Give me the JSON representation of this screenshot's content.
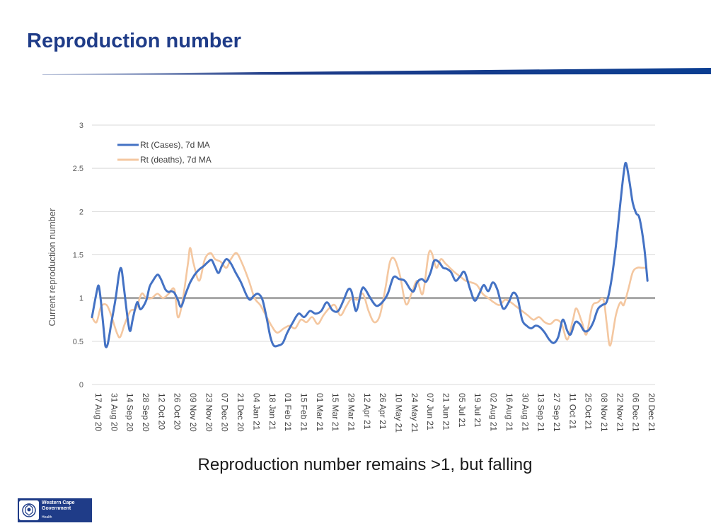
{
  "page": {
    "title": "Reproduction number",
    "caption": "Reproduction number remains >1, but falling",
    "logo": {
      "line1": "Western Cape",
      "line2": "Government",
      "dept": "Health"
    }
  },
  "colors": {
    "title": "#1f3c88",
    "cases": "#4472c4",
    "deaths": "#f4c7a0",
    "threshold": "#a6a6a6",
    "grid": "#d9d9d9"
  },
  "chart_data": {
    "type": "line",
    "ylabel": "Current reproduction number",
    "xlabel": "",
    "ylim": [
      0,
      3
    ],
    "y_ticks": [
      "0",
      "0.5",
      "1",
      "1.5",
      "2",
      "2.5",
      "3"
    ],
    "grid": "horizontal",
    "legend_position": "top-left",
    "x_tick_labels": [
      "17 Aug 20",
      "31 Aug 20",
      "14 Sep 20",
      "28 Sep 20",
      "12 Oct 20",
      "26 Oct 20",
      "09 Nov 20",
      "23 Nov 20",
      "07 Dec 20",
      "21 Dec 20",
      "04 Jan 21",
      "18 Jan 21",
      "01 Feb 21",
      "15 Feb 21",
      "01 Mar 21",
      "15 Mar 21",
      "29 Mar 21",
      "12 Apr 21",
      "26 Apr 21",
      "10 May 21",
      "24 May 21",
      "07 Jun 21",
      "21 Jun 21",
      "05 Jul 21",
      "19 Jul 21",
      "02 Aug 21",
      "16 Aug 21",
      "30 Aug 21",
      "13 Sep 21",
      "27 Sep 21",
      "11 Oct 21",
      "25 Oct 21",
      "08 Nov 21",
      "22 Nov 21",
      "06 Dec 21",
      "20 Dec 21"
    ],
    "x_range": [
      "2020-08-17",
      "2021-12-20"
    ],
    "reference_line": {
      "y": 1,
      "from": "2020-08-24",
      "to": "2021-12-29"
    },
    "series": [
      {
        "name": "Rt (Cases), 7d MA",
        "points": [
          [
            "2020-08-17",
            0.78
          ],
          [
            "2020-08-21",
            1.06
          ],
          [
            "2020-08-23",
            1.14
          ],
          [
            "2020-08-25",
            0.95
          ],
          [
            "2020-08-28",
            0.55
          ],
          [
            "2020-08-29",
            0.44
          ],
          [
            "2020-08-31",
            0.47
          ],
          [
            "2020-09-03",
            0.7
          ],
          [
            "2020-09-07",
            1.0
          ],
          [
            "2020-09-10",
            1.28
          ],
          [
            "2020-09-12",
            1.34
          ],
          [
            "2020-09-14",
            1.15
          ],
          [
            "2020-09-18",
            0.72
          ],
          [
            "2020-09-20",
            0.62
          ],
          [
            "2020-09-22",
            0.75
          ],
          [
            "2020-09-26",
            0.95
          ],
          [
            "2020-09-29",
            0.87
          ],
          [
            "2020-10-04",
            0.97
          ],
          [
            "2020-10-07",
            1.13
          ],
          [
            "2020-10-10",
            1.2
          ],
          [
            "2020-10-14",
            1.27
          ],
          [
            "2020-10-17",
            1.22
          ],
          [
            "2020-10-21",
            1.1
          ],
          [
            "2020-10-24",
            1.07
          ],
          [
            "2020-10-26",
            1.08
          ],
          [
            "2020-10-29",
            1.06
          ],
          [
            "2020-11-01",
            0.98
          ],
          [
            "2020-11-04",
            0.9
          ],
          [
            "2020-11-08",
            1.05
          ],
          [
            "2020-11-12",
            1.18
          ],
          [
            "2020-11-16",
            1.27
          ],
          [
            "2020-11-20",
            1.33
          ],
          [
            "2020-11-24",
            1.37
          ],
          [
            "2020-11-28",
            1.42
          ],
          [
            "2020-12-01",
            1.44
          ],
          [
            "2020-12-04",
            1.36
          ],
          [
            "2020-12-07",
            1.29
          ],
          [
            "2020-12-10",
            1.37
          ],
          [
            "2020-12-14",
            1.45
          ],
          [
            "2020-12-18",
            1.4
          ],
          [
            "2020-12-22",
            1.3
          ],
          [
            "2020-12-27",
            1.18
          ],
          [
            "2021-01-01",
            1.03
          ],
          [
            "2021-01-04",
            0.98
          ],
          [
            "2021-01-07",
            1.02
          ],
          [
            "2021-01-11",
            1.05
          ],
          [
            "2021-01-15",
            0.98
          ],
          [
            "2021-01-19",
            0.75
          ],
          [
            "2021-01-22",
            0.55
          ],
          [
            "2021-01-25",
            0.45
          ],
          [
            "2021-01-29",
            0.45
          ],
          [
            "2021-02-02",
            0.48
          ],
          [
            "2021-02-06",
            0.6
          ],
          [
            "2021-02-11",
            0.72
          ],
          [
            "2021-02-16",
            0.82
          ],
          [
            "2021-02-21",
            0.78
          ],
          [
            "2021-02-26",
            0.85
          ],
          [
            "2021-03-03",
            0.82
          ],
          [
            "2021-03-08",
            0.85
          ],
          [
            "2021-03-13",
            0.95
          ],
          [
            "2021-03-18",
            0.86
          ],
          [
            "2021-03-23",
            0.85
          ],
          [
            "2021-03-28",
            0.98
          ],
          [
            "2021-04-01",
            1.1
          ],
          [
            "2021-04-04",
            1.07
          ],
          [
            "2021-04-08",
            0.85
          ],
          [
            "2021-04-13",
            1.1
          ],
          [
            "2021-04-16",
            1.1
          ],
          [
            "2021-04-21",
            0.99
          ],
          [
            "2021-04-26",
            0.91
          ],
          [
            "2021-05-01",
            0.95
          ],
          [
            "2021-05-06",
            1.05
          ],
          [
            "2021-05-11",
            1.24
          ],
          [
            "2021-05-16",
            1.22
          ],
          [
            "2021-05-21",
            1.2
          ],
          [
            "2021-05-26",
            1.1
          ],
          [
            "2021-05-29",
            1.08
          ],
          [
            "2021-06-01",
            1.18
          ],
          [
            "2021-06-05",
            1.22
          ],
          [
            "2021-06-09",
            1.19
          ],
          [
            "2021-06-13",
            1.3
          ],
          [
            "2021-06-16",
            1.43
          ],
          [
            "2021-06-20",
            1.42
          ],
          [
            "2021-06-24",
            1.35
          ],
          [
            "2021-06-27",
            1.34
          ],
          [
            "2021-07-01",
            1.3
          ],
          [
            "2021-07-05",
            1.2
          ],
          [
            "2021-07-09",
            1.25
          ],
          [
            "2021-07-13",
            1.3
          ],
          [
            "2021-07-18",
            1.1
          ],
          [
            "2021-07-22",
            0.97
          ],
          [
            "2021-07-26",
            1.05
          ],
          [
            "2021-07-30",
            1.15
          ],
          [
            "2021-08-03",
            1.08
          ],
          [
            "2021-08-07",
            1.18
          ],
          [
            "2021-08-11",
            1.1
          ],
          [
            "2021-08-16",
            0.88
          ],
          [
            "2021-08-21",
            0.95
          ],
          [
            "2021-08-25",
            1.06
          ],
          [
            "2021-08-29",
            1.0
          ],
          [
            "2021-09-02",
            0.75
          ],
          [
            "2021-09-06",
            0.68
          ],
          [
            "2021-09-10",
            0.65
          ],
          [
            "2021-09-14",
            0.68
          ],
          [
            "2021-09-18",
            0.66
          ],
          [
            "2021-09-22",
            0.6
          ],
          [
            "2021-09-26",
            0.52
          ],
          [
            "2021-09-30",
            0.48
          ],
          [
            "2021-10-04",
            0.55
          ],
          [
            "2021-10-08",
            0.75
          ],
          [
            "2021-10-12",
            0.62
          ],
          [
            "2021-10-15",
            0.58
          ],
          [
            "2021-10-19",
            0.72
          ],
          [
            "2021-10-23",
            0.7
          ],
          [
            "2021-10-27",
            0.62
          ],
          [
            "2021-10-31",
            0.63
          ],
          [
            "2021-11-04",
            0.72
          ],
          [
            "2021-11-08",
            0.87
          ],
          [
            "2021-11-12",
            0.92
          ],
          [
            "2021-11-16",
            0.96
          ],
          [
            "2021-11-20",
            1.2
          ],
          [
            "2021-11-24",
            1.6
          ],
          [
            "2021-11-28",
            2.1
          ],
          [
            "2021-12-01",
            2.45
          ],
          [
            "2021-12-03",
            2.56
          ],
          [
            "2021-12-06",
            2.35
          ],
          [
            "2021-12-09",
            2.1
          ],
          [
            "2021-12-12",
            1.98
          ],
          [
            "2021-12-15",
            1.92
          ],
          [
            "2021-12-19",
            1.6
          ],
          [
            "2021-12-22",
            1.2
          ]
        ]
      },
      {
        "name": "Rt (deaths), 7d MA",
        "points": [
          [
            "2020-08-17",
            0.78
          ],
          [
            "2020-08-21",
            0.72
          ],
          [
            "2020-08-25",
            0.9
          ],
          [
            "2020-08-30",
            0.92
          ],
          [
            "2020-09-03",
            0.8
          ],
          [
            "2020-09-08",
            0.6
          ],
          [
            "2020-09-11",
            0.55
          ],
          [
            "2020-09-15",
            0.7
          ],
          [
            "2020-09-20",
            0.85
          ],
          [
            "2020-09-25",
            0.88
          ],
          [
            "2020-09-30",
            1.05
          ],
          [
            "2020-10-04",
            1.0
          ],
          [
            "2020-10-09",
            1.0
          ],
          [
            "2020-10-14",
            1.05
          ],
          [
            "2020-10-19",
            1.0
          ],
          [
            "2020-10-24",
            1.05
          ],
          [
            "2020-10-29",
            1.1
          ],
          [
            "2020-11-01",
            0.78
          ],
          [
            "2020-11-05",
            0.95
          ],
          [
            "2020-11-10",
            1.4
          ],
          [
            "2020-11-12",
            1.58
          ],
          [
            "2020-11-15",
            1.4
          ],
          [
            "2020-11-20",
            1.2
          ],
          [
            "2020-11-25",
            1.45
          ],
          [
            "2020-11-30",
            1.52
          ],
          [
            "2020-12-04",
            1.45
          ],
          [
            "2020-12-09",
            1.42
          ],
          [
            "2020-12-14",
            1.35
          ],
          [
            "2020-12-18",
            1.45
          ],
          [
            "2020-12-23",
            1.52
          ],
          [
            "2020-12-28",
            1.4
          ],
          [
            "2021-01-03",
            1.2
          ],
          [
            "2021-01-08",
            1.0
          ],
          [
            "2021-01-13",
            0.92
          ],
          [
            "2021-01-18",
            0.8
          ],
          [
            "2021-01-23",
            0.68
          ],
          [
            "2021-01-28",
            0.6
          ],
          [
            "2021-02-03",
            0.65
          ],
          [
            "2021-02-08",
            0.68
          ],
          [
            "2021-02-13",
            0.65
          ],
          [
            "2021-02-18",
            0.75
          ],
          [
            "2021-02-23",
            0.72
          ],
          [
            "2021-02-28",
            0.78
          ],
          [
            "2021-03-05",
            0.7
          ],
          [
            "2021-03-10",
            0.8
          ],
          [
            "2021-03-15",
            0.88
          ],
          [
            "2021-03-20",
            0.92
          ],
          [
            "2021-03-25",
            0.8
          ],
          [
            "2021-03-30",
            0.9
          ],
          [
            "2021-04-04",
            1.0
          ],
          [
            "2021-04-09",
            0.98
          ],
          [
            "2021-04-14",
            1.05
          ],
          [
            "2021-04-19",
            0.85
          ],
          [
            "2021-04-24",
            0.72
          ],
          [
            "2021-04-29",
            0.8
          ],
          [
            "2021-05-04",
            1.12
          ],
          [
            "2021-05-08",
            1.42
          ],
          [
            "2021-05-12",
            1.45
          ],
          [
            "2021-05-17",
            1.25
          ],
          [
            "2021-05-22",
            0.93
          ],
          [
            "2021-05-27",
            1.05
          ],
          [
            "2021-06-01",
            1.2
          ],
          [
            "2021-06-06",
            1.05
          ],
          [
            "2021-06-11",
            1.5
          ],
          [
            "2021-06-14",
            1.52
          ],
          [
            "2021-06-18",
            1.35
          ],
          [
            "2021-06-22",
            1.45
          ],
          [
            "2021-06-26",
            1.4
          ],
          [
            "2021-06-30",
            1.35
          ],
          [
            "2021-07-04",
            1.3
          ],
          [
            "2021-07-09",
            1.25
          ],
          [
            "2021-07-14",
            1.2
          ],
          [
            "2021-07-19",
            1.18
          ],
          [
            "2021-07-24",
            1.15
          ],
          [
            "2021-07-29",
            1.05
          ],
          [
            "2021-08-03",
            1.0
          ],
          [
            "2021-08-08",
            0.95
          ],
          [
            "2021-08-13",
            0.92
          ],
          [
            "2021-08-18",
            0.98
          ],
          [
            "2021-08-23",
            0.95
          ],
          [
            "2021-08-28",
            0.9
          ],
          [
            "2021-09-02",
            0.85
          ],
          [
            "2021-09-07",
            0.8
          ],
          [
            "2021-09-12",
            0.75
          ],
          [
            "2021-09-17",
            0.78
          ],
          [
            "2021-09-22",
            0.72
          ],
          [
            "2021-09-27",
            0.7
          ],
          [
            "2021-10-02",
            0.75
          ],
          [
            "2021-10-07",
            0.7
          ],
          [
            "2021-10-12",
            0.52
          ],
          [
            "2021-10-17",
            0.75
          ],
          [
            "2021-10-20",
            0.88
          ],
          [
            "2021-10-25",
            0.72
          ],
          [
            "2021-10-29",
            0.58
          ],
          [
            "2021-11-03",
            0.9
          ],
          [
            "2021-11-08",
            0.95
          ],
          [
            "2021-11-13",
            0.98
          ],
          [
            "2021-11-16",
            0.7
          ],
          [
            "2021-11-19",
            0.45
          ],
          [
            "2021-11-24",
            0.8
          ],
          [
            "2021-11-28",
            0.95
          ],
          [
            "2021-12-01",
            0.92
          ],
          [
            "2021-12-05",
            1.1
          ],
          [
            "2021-12-09",
            1.3
          ],
          [
            "2021-12-13",
            1.35
          ],
          [
            "2021-12-17",
            1.35
          ],
          [
            "2021-12-21",
            1.35
          ]
        ]
      }
    ]
  }
}
